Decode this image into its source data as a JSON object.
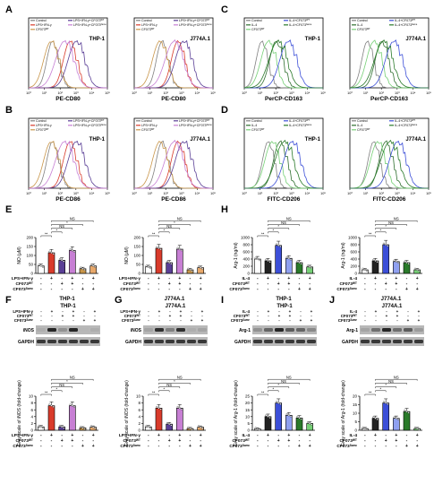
{
  "panel_letters": [
    "A",
    "B",
    "C",
    "D",
    "E",
    "F",
    "G",
    "H",
    "I",
    "J"
  ],
  "colors": {
    "control": "#808080",
    "stim": "#d93b2b",
    "cf_wt": "#5a3f96",
    "cf_mut": "#c77fd4",
    "cf_wt_alone": "#c9964a",
    "cf_mut_alone": "#e8a86a",
    "il4": "#2f6f2f",
    "il4_wt": "#3c4fd8",
    "il4_mut": "#5cc45c",
    "cf_il4_wt": "#2a7a2a",
    "cf_il4_mut": "#76d076"
  },
  "flow_panels": [
    {
      "id": "A1",
      "cell": "THP-1",
      "xlabel": "PE-CD80",
      "legend": [
        "Control",
        "LPS+IFN-γ",
        "CF073ᵂᵀ",
        "LPS+IFN-γ+CF073ᵂᵀ",
        "LPS+IFN-γ+CF073ᵟᵃᵐᵉ"
      ]
    },
    {
      "id": "A2",
      "cell": "J774A.1",
      "xlabel": "PE-CD80",
      "legend": [
        "Control",
        "LPS+IFN-γ",
        "CF073ᵂᵀ",
        "LPS+IFN-γ+CF073ᵂᵀ",
        "LPS+IFN-γ+CF073ᵟᵃᵐᵉ"
      ]
    },
    {
      "id": "B1",
      "cell": "THP-1",
      "xlabel": "PE-CD86",
      "legend": [
        "Control",
        "LPS+IFN-γ",
        "CF073ᵂᵀ",
        "LPS+IFN-γ+CF073ᵂᵀ",
        "LPS+IFN-γ+CF073ᵟᵃᵐᵉ"
      ]
    },
    {
      "id": "B2",
      "cell": "J774A.1",
      "xlabel": "PE-CD86",
      "legend": [
        "Control",
        "LPS+IFN-γ",
        "CF073ᵂᵀ",
        "LPS+IFN-γ+CF073ᵂᵀ",
        "LPS+IFN-γ+CF073ᵟᵃᵐᵉ"
      ]
    },
    {
      "id": "C1",
      "cell": "THP-1",
      "xlabel": "PerCP-CD163",
      "legend": [
        "Control",
        "IL-4",
        "CF073ᵂᵀ",
        "IL-4+CF073ᵂᵀ",
        "IL-4+CF073ᵟᵃᵐᵉ"
      ]
    },
    {
      "id": "C2",
      "cell": "J774A.1",
      "xlabel": "PerCP-CD163",
      "legend": [
        "Control",
        "IL-4",
        "CF073ᵂᵀ",
        "IL-4+CF073ᵂᵀ",
        "IL-4+CF073ᵟᵃᵐᵉ"
      ]
    },
    {
      "id": "D1",
      "cell": "THP-1",
      "xlabel": "FITC-CD206",
      "legend": [
        "Control",
        "IL-4",
        "CF073ᵂᵀ",
        "IL-4+CF073ᵂᵀ",
        "IL-4+CF073ᵟᵃᵐᵉ"
      ]
    },
    {
      "id": "D2",
      "cell": "J774A.1",
      "xlabel": "FITC-CD206",
      "legend": [
        "Control",
        "IL-4",
        "CF073ᵂᵀ",
        "IL-4+CF073ᵂᵀ",
        "IL-4+CF073ᵟᵃᵐᵉ"
      ]
    }
  ],
  "flow_axis": {
    "xticks": [
      "10⁰",
      "10¹",
      "10²",
      "10³",
      "10⁴",
      "10⁵"
    ]
  },
  "chart_data": [
    {
      "id": "E1",
      "type": "bar",
      "cell": "THP-1",
      "ylabel": "NO (μM)",
      "ylim": [
        0,
        200
      ],
      "yticks": [
        0,
        50,
        100,
        150,
        200
      ],
      "values": [
        42,
        115,
        73,
        128,
        26,
        42
      ],
      "treat_labels": [
        "LPS+IFN-γ",
        "CF073ᵂᵀ",
        "CF073ᵟᵃᵐᵉ"
      ],
      "sig": [
        "**",
        "*",
        "NS",
        "*",
        "NS"
      ],
      "marks": [
        [
          "-",
          "+",
          "-",
          "+",
          "-",
          "+"
        ],
        [
          "-",
          "-",
          "+",
          "+",
          "-",
          "-"
        ],
        [
          "-",
          "-",
          "-",
          "-",
          "+",
          "+"
        ]
      ]
    },
    {
      "id": "E2",
      "type": "bar",
      "cell": "J774A.1",
      "ylabel": "NO (μM)",
      "ylim": [
        0,
        200
      ],
      "yticks": [
        0,
        50,
        100,
        150,
        200
      ],
      "values": [
        36,
        140,
        60,
        135,
        20,
        32
      ],
      "treat_labels": [
        "LPS+IFN-γ",
        "CF073ᵂᵀ",
        "CF073ᵟᵃᵐᵉ"
      ],
      "sig": [
        "**",
        "*",
        "NS",
        "*",
        "NS"
      ],
      "marks": [
        [
          "-",
          "+",
          "-",
          "+",
          "-",
          "+"
        ],
        [
          "-",
          "-",
          "+",
          "+",
          "-",
          "-"
        ],
        [
          "-",
          "-",
          "-",
          "-",
          "+",
          "+"
        ]
      ]
    },
    {
      "id": "H1",
      "type": "bar",
      "cell": "THP-1",
      "ylabel": "Arg-1 (ng/ml)",
      "ylim": [
        0,
        1000
      ],
      "yticks": [
        0,
        200,
        400,
        600,
        800,
        1000
      ],
      "values": [
        400,
        350,
        780,
        420,
        300,
        180
      ],
      "treat_labels": [
        "IL-4",
        "CF073ᵂᵀ",
        "CF073ᵟᵃᵐᵉ"
      ],
      "sig": [
        "**",
        "*",
        "*",
        "NS",
        "NS"
      ],
      "marks": [
        [
          "-",
          "+",
          "-",
          "+",
          "-",
          "+"
        ],
        [
          "-",
          "-",
          "+",
          "+",
          "-",
          "-"
        ],
        [
          "-",
          "-",
          "-",
          "-",
          "+",
          "+"
        ]
      ]
    },
    {
      "id": "H2",
      "type": "bar",
      "cell": "J774A.1",
      "ylabel": "Arg-1 (ng/ml)",
      "ylim": [
        0,
        1000
      ],
      "yticks": [
        0,
        200,
        400,
        600,
        800,
        1000
      ],
      "values": [
        100,
        350,
        800,
        330,
        300,
        100
      ],
      "treat_labels": [
        "IL-4",
        "CF073ᵂᵀ",
        "CF073ᵟᵃᵐᵉ"
      ],
      "sig": [
        "**",
        "*",
        "*",
        "NS",
        "NS"
      ],
      "marks": [
        [
          "-",
          "+",
          "-",
          "+",
          "-",
          "+"
        ],
        [
          "-",
          "-",
          "+",
          "+",
          "-",
          "-"
        ],
        [
          "-",
          "-",
          "-",
          "-",
          "+",
          "+"
        ]
      ]
    },
    {
      "id": "F",
      "type": "bar",
      "cell": "THP-1",
      "ylabel": "Gray scale of iNOS (fold-change)",
      "ylim": [
        0,
        10
      ],
      "yticks": [
        0,
        2,
        4,
        6,
        8,
        10
      ],
      "values": [
        1,
        7.2,
        1,
        7.2,
        0.7,
        0.9
      ],
      "treat_labels": [
        "LPS+IFN-γ",
        "CF073ᵂᵀ",
        "CF073ᵟᵃᵐᵉ"
      ],
      "sig": [
        "**",
        "*",
        "NS",
        "*",
        "NS"
      ],
      "marks": [
        [
          "-",
          "+",
          "-",
          "+",
          "-",
          "+"
        ],
        [
          "-",
          "-",
          "+",
          "+",
          "-",
          "-"
        ],
        [
          "-",
          "-",
          "-",
          "-",
          "+",
          "+"
        ]
      ]
    },
    {
      "id": "G",
      "type": "bar",
      "cell": "J774A.1",
      "ylabel": "Gray scale of iNOS (fold-change)",
      "ylim": [
        0,
        10
      ],
      "yticks": [
        0,
        2,
        4,
        6,
        8,
        10
      ],
      "values": [
        1,
        6.5,
        1.8,
        6.5,
        0.5,
        0.9
      ],
      "treat_labels": [
        "LPS+IFN-γ",
        "CF073ᵂᵀ",
        "CF073ᵟᵃᵐᵉ"
      ],
      "sig": [
        "**",
        "*",
        "NS",
        "*",
        "NS"
      ],
      "marks": [
        [
          "-",
          "+",
          "-",
          "+",
          "-",
          "+"
        ],
        [
          "-",
          "-",
          "+",
          "+",
          "-",
          "-"
        ],
        [
          "-",
          "-",
          "-",
          "-",
          "+",
          "+"
        ]
      ]
    },
    {
      "id": "I",
      "type": "bar",
      "cell": "THP-1",
      "ylabel": "Gray scale of Arg-1 (fold-change)",
      "ylim": [
        0,
        25
      ],
      "yticks": [
        0,
        5,
        10,
        15,
        20,
        25
      ],
      "values": [
        1,
        10,
        20,
        11,
        9,
        5
      ],
      "treat_labels": [
        "IL-4",
        "CF073ᵂᵀ",
        "CF073ᵟᵃᵐᵉ"
      ],
      "sig": [
        "**",
        "*",
        "*",
        "NS",
        "NS"
      ],
      "marks": [
        [
          "-",
          "+",
          "-",
          "+",
          "-",
          "+"
        ],
        [
          "-",
          "-",
          "+",
          "+",
          "-",
          "-"
        ],
        [
          "-",
          "-",
          "-",
          "-",
          "+",
          "+"
        ]
      ]
    },
    {
      "id": "J",
      "type": "bar",
      "cell": "J774A.1",
      "ylabel": "Gray scale of Arg-1 (fold-change)",
      "ylim": [
        0,
        20
      ],
      "yticks": [
        0,
        5,
        10,
        15,
        20
      ],
      "values": [
        1,
        7,
        16,
        7,
        11,
        1
      ],
      "treat_labels": [
        "IL-4",
        "CF073ᵂᵀ",
        "CF073ᵟᵃᵐᵉ"
      ],
      "sig": [
        "**",
        "*",
        "*",
        "NS",
        "NS"
      ],
      "marks": [
        [
          "-",
          "+",
          "-",
          "+",
          "-",
          "+"
        ],
        [
          "-",
          "-",
          "+",
          "+",
          "-",
          "-"
        ],
        [
          "-",
          "-",
          "-",
          "-",
          "+",
          "+"
        ]
      ]
    }
  ],
  "blots": [
    {
      "id": "F",
      "cell": "THP-1",
      "treat_labels": [
        "LPS+IFN-γ",
        "CF073ᵂᵀ",
        "CF073ᵟᵃᵐᵉ"
      ],
      "rows": [
        "iNOS",
        "GAPDH"
      ],
      "intensity": [
        [
          0.15,
          0.9,
          0.3,
          0.9,
          0.1,
          0.15
        ],
        [
          0.8,
          0.8,
          0.8,
          0.8,
          0.8,
          0.8
        ]
      ]
    },
    {
      "id": "G",
      "cell": "J774A.1",
      "treat_labels": [
        "LPS+IFN-γ",
        "CF073ᵂᵀ",
        "CF073ᵟᵃᵐᵉ"
      ],
      "rows": [
        "iNOS",
        "GAPDH"
      ],
      "intensity": [
        [
          0.2,
          0.85,
          0.4,
          0.85,
          0.15,
          0.2
        ],
        [
          0.8,
          0.8,
          0.8,
          0.8,
          0.8,
          0.8
        ]
      ]
    },
    {
      "id": "I",
      "cell": "THP-1",
      "treat_labels": [
        "IL-4",
        "CF073ᵂᵀ",
        "CF073ᵟᵃᵐᵉ"
      ],
      "rows": [
        "Arg-1",
        "GAPDH"
      ],
      "intensity": [
        [
          0.3,
          0.55,
          0.9,
          0.6,
          0.55,
          0.35
        ],
        [
          0.8,
          0.8,
          0.8,
          0.8,
          0.8,
          0.8
        ]
      ]
    },
    {
      "id": "J",
      "cell": "J774A.1",
      "treat_labels": [
        "IL-4",
        "CF073ᵂᵀ",
        "CF073ᵟᵃᵐᵉ"
      ],
      "rows": [
        "Arg-1",
        "GAPDH"
      ],
      "intensity": [
        [
          0.2,
          0.5,
          0.9,
          0.5,
          0.6,
          0.25
        ],
        [
          0.8,
          0.8,
          0.8,
          0.8,
          0.8,
          0.8
        ]
      ]
    }
  ]
}
